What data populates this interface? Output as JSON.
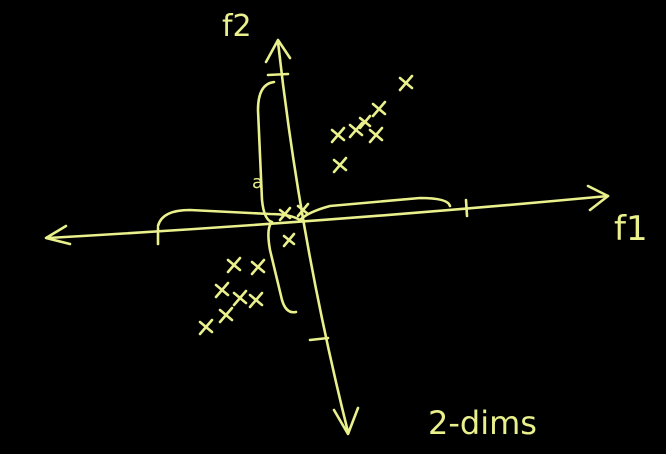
{
  "labels": {
    "y_axis": "f2",
    "x_axis": "f1",
    "caption": "2-dims",
    "brace": "a"
  }
}
